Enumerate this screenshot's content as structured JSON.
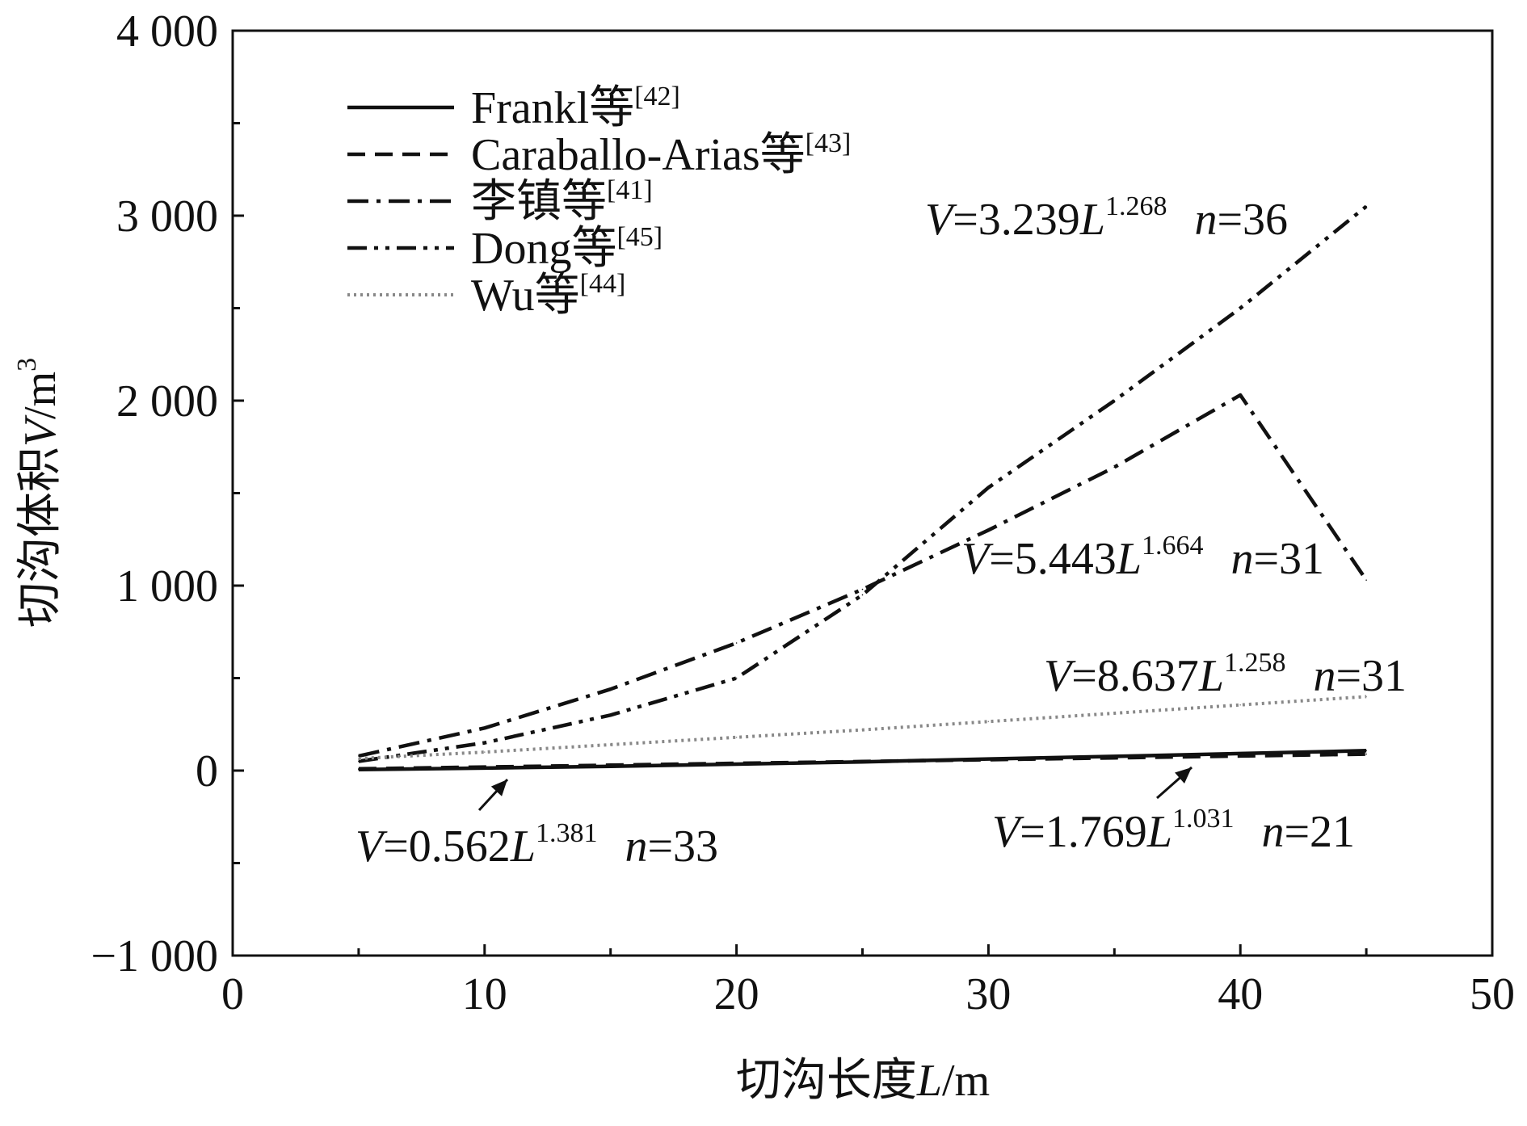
{
  "chart_data": {
    "type": "line",
    "title": "",
    "xlabel": "切沟长度L/m",
    "ylabel": "切沟体积V/m³",
    "xlabel_parts": {
      "main": "切沟长度",
      "var": "L",
      "unit": "/m"
    },
    "ylabel_parts": {
      "main": "切沟体积",
      "var": "V",
      "unit": "/m",
      "exp": "3"
    },
    "xlim": [
      0,
      50
    ],
    "ylim": [
      -1000,
      4000
    ],
    "x_ticks": [
      0,
      10,
      20,
      30,
      40,
      50
    ],
    "x_tick_labels": [
      "0",
      "10",
      "20",
      "30",
      "40",
      "50"
    ],
    "y_ticks": [
      -1000,
      0,
      1000,
      2000,
      3000,
      4000
    ],
    "y_tick_labels": [
      "−1 000",
      "0",
      "1 000",
      "2 000",
      "3 000",
      "4 000"
    ],
    "grid": false,
    "legend_position": "top-left",
    "x": [
      5,
      10,
      15,
      20,
      25,
      30,
      35,
      40,
      45
    ],
    "series": [
      {
        "name": "Frankl等",
        "ref": "[42]",
        "style": "solid",
        "color": "#111111",
        "values": [
          5.6,
          13.5,
          23.1,
          35,
          47,
          63,
          77,
          92,
          108
        ]
      },
      {
        "name": "Caraballo-Arias等",
        "ref": "[43]",
        "style": "dashed",
        "color": "#111111",
        "values": [
          9.5,
          19.4,
          29.2,
          39.1,
          49.1,
          59,
          69,
          79,
          89.3
        ]
      },
      {
        "name": "李镇等",
        "ref": "[41]",
        "style": "dashdot",
        "color": "#111111",
        "values": [
          79,
          230,
          440,
          690,
          980,
          1300,
          1640,
          2030,
          1030
        ]
      },
      {
        "name": "Dong等",
        "ref": "[45]",
        "style": "dashdotdot",
        "color": "#111111",
        "values": [
          50,
          150,
          300,
          500,
          950,
          1530,
          2000,
          2500,
          3050
        ]
      },
      {
        "name": "Wu等",
        "ref": "[44]",
        "style": "dotted",
        "color": "#888888",
        "values": [
          65,
          100,
          140,
          180,
          220,
          265,
          310,
          355,
          400
        ]
      }
    ],
    "annotations": [
      {
        "id": "dong-eq",
        "prefix": "V",
        "coef": "=3.239",
        "var": "L",
        "exp": "1.268",
        "n_var": "n",
        "n_val": "=36"
      },
      {
        "id": "li-eq",
        "prefix": "V",
        "coef": "=5.443",
        "var": "L",
        "exp": "1.664",
        "n_var": "n",
        "n_val": "=31"
      },
      {
        "id": "wu-eq",
        "prefix": "V",
        "coef": "=8.637",
        "var": "L",
        "exp": "1.258",
        "n_var": "n",
        "n_val": "=31"
      },
      {
        "id": "frankl-eq",
        "prefix": "V",
        "coef": "=0.562",
        "var": "L",
        "exp": "1.381",
        "n_var": "n",
        "n_val": "=33"
      },
      {
        "id": "caraballo-eq",
        "prefix": "V",
        "coef": "=1.769",
        "var": "L",
        "exp": "1.031",
        "n_var": "n",
        "n_val": "=21"
      }
    ]
  }
}
